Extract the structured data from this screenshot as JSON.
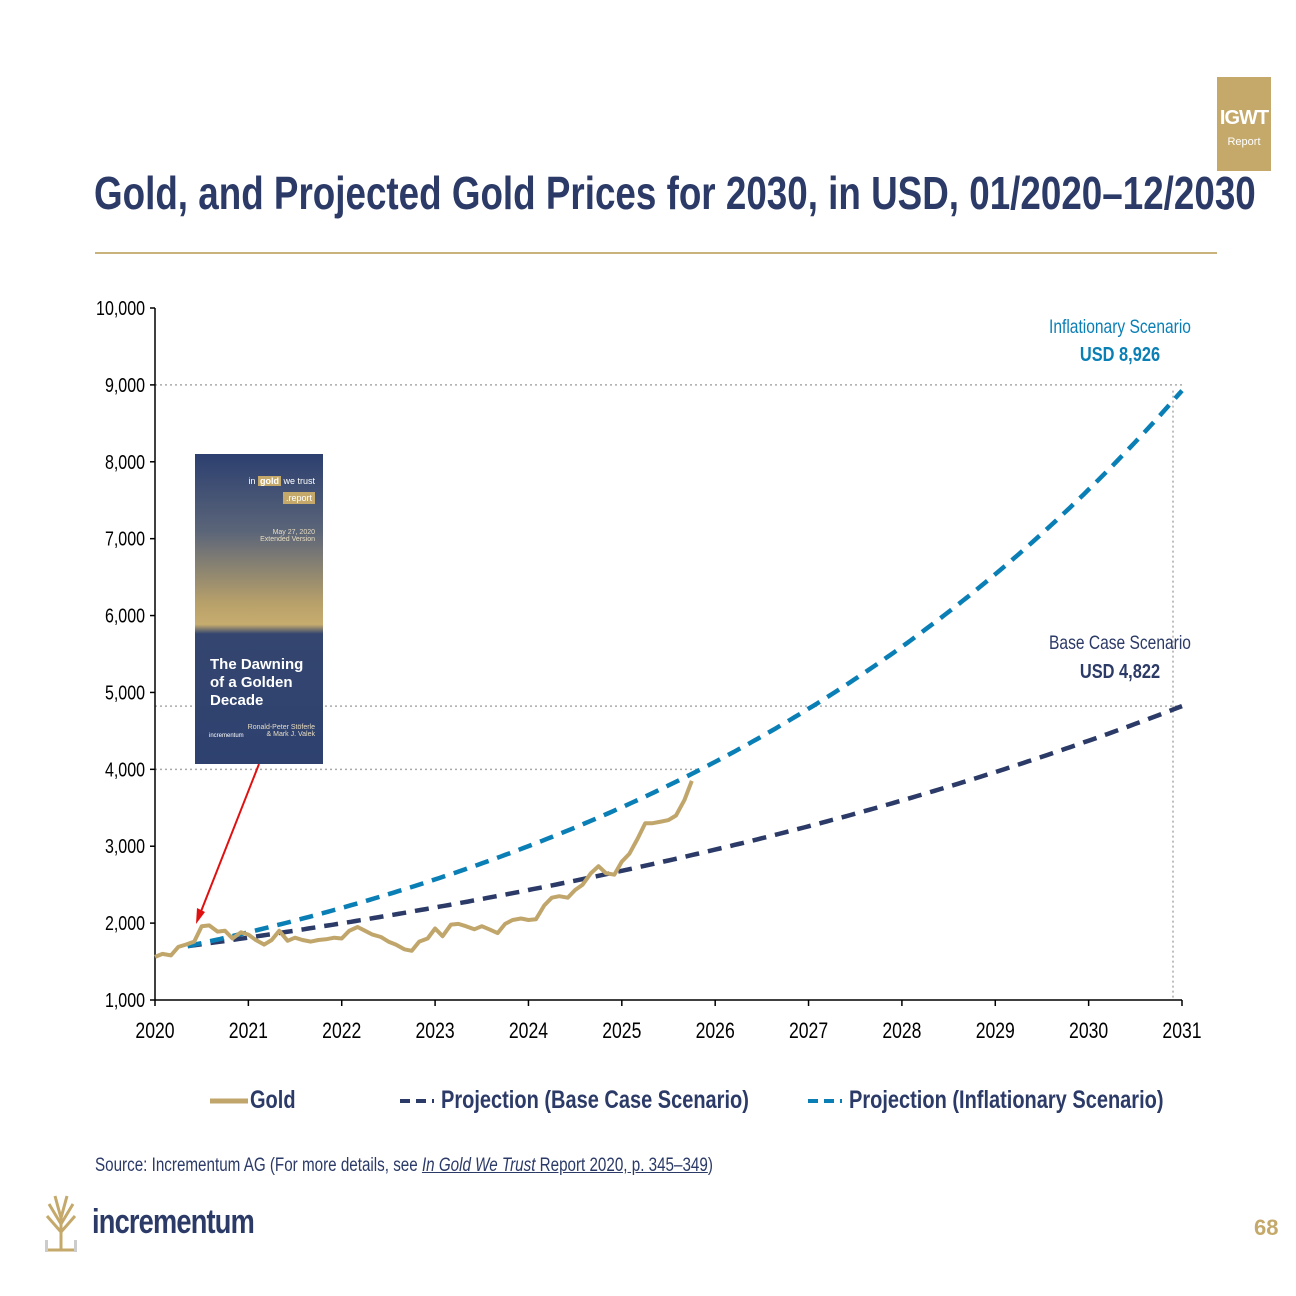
{
  "header": {
    "title": "Gold, and Projected Gold Prices for 2030, in USD, 01/2020–12/2030",
    "badge_line1": "IGWT",
    "badge_line2": "Report"
  },
  "cover": {
    "tag_pre": "in",
    "tag_gold": "gold",
    "tag_post": "we trust",
    "tag_report": ".report",
    "date": "May 27, 2020",
    "edition": "Extended Version",
    "title_l1": "The Dawning",
    "title_l2": "of a Golden",
    "title_l3": "Decade",
    "authors_l1": "Ronald-Peter Stöferle",
    "authors_l2": "& Mark J. Valek",
    "publisher": "incrementum"
  },
  "chart_data": {
    "type": "line",
    "title": "Gold, and Projected Gold Prices for 2030, in USD, 01/2020–12/2030",
    "xlim": [
      2020,
      2031
    ],
    "ylim": [
      1000,
      10000
    ],
    "x_ticks": [
      "2020",
      "2021",
      "2022",
      "2023",
      "2024",
      "2025",
      "2026",
      "2027",
      "2028",
      "2029",
      "2030",
      "2031"
    ],
    "y_ticks": [
      "1,000",
      "2,000",
      "3,000",
      "4,000",
      "5,000",
      "6,000",
      "7,000",
      "8,000",
      "9,000",
      "10,000"
    ],
    "reference_lines": [
      9000,
      4822,
      4000
    ],
    "legend_position": "bottom",
    "annotations": {
      "inflationary_label": "Inflationary Scenario",
      "inflationary_value": "USD 8,926",
      "base_label": "Base Case Scenario",
      "base_value": "USD 4,822"
    },
    "series": [
      {
        "name": "Gold",
        "color": "#c1a66c",
        "style": "solid",
        "x": [
          2020.0,
          2020.08,
          2020.17,
          2020.25,
          2020.33,
          2020.42,
          2020.5,
          2020.58,
          2020.67,
          2020.75,
          2020.83,
          2020.92,
          2021.0,
          2021.08,
          2021.17,
          2021.25,
          2021.33,
          2021.42,
          2021.5,
          2021.58,
          2021.67,
          2021.75,
          2021.83,
          2021.92,
          2022.0,
          2022.08,
          2022.17,
          2022.25,
          2022.33,
          2022.42,
          2022.5,
          2022.58,
          2022.67,
          2022.75,
          2022.83,
          2022.92,
          2023.0,
          2023.08,
          2023.17,
          2023.25,
          2023.33,
          2023.42,
          2023.5,
          2023.58,
          2023.67,
          2023.75,
          2023.83,
          2023.92,
          2024.0,
          2024.08,
          2024.17,
          2024.25,
          2024.33,
          2024.42,
          2024.5,
          2024.58,
          2024.67,
          2024.75,
          2024.83,
          2024.92,
          2025.0,
          2025.08,
          2025.17,
          2025.25,
          2025.33,
          2025.42,
          2025.5,
          2025.58,
          2025.67,
          2025.75
        ],
        "values": [
          1560,
          1600,
          1580,
          1690,
          1720,
          1760,
          1960,
          1970,
          1890,
          1900,
          1800,
          1880,
          1850,
          1780,
          1720,
          1780,
          1900,
          1770,
          1810,
          1780,
          1760,
          1780,
          1790,
          1810,
          1800,
          1900,
          1950,
          1900,
          1850,
          1820,
          1760,
          1720,
          1660,
          1640,
          1760,
          1800,
          1930,
          1830,
          1980,
          1990,
          1960,
          1920,
          1960,
          1920,
          1870,
          1990,
          2040,
          2060,
          2040,
          2050,
          2230,
          2330,
          2350,
          2330,
          2430,
          2500,
          2650,
          2740,
          2650,
          2630,
          2800,
          2900,
          3100,
          3300,
          3300,
          3320,
          3340,
          3400,
          3600,
          3850
        ]
      },
      {
        "name": "Projection (Base Case Scenario)",
        "color": "#2b3a67",
        "style": "dashed",
        "start_x": 2020.35,
        "start_value": 1700,
        "end_x": 2031,
        "end_value": 4822
      },
      {
        "name": "Projection (Inflationary Scenario)",
        "color": "#0a7fb5",
        "style": "dashed",
        "start_x": 2020.35,
        "start_value": 1700,
        "end_x": 2031,
        "end_value": 8926
      }
    ]
  },
  "legend": {
    "gold": "Gold",
    "base": "Projection (Base Case Scenario)",
    "infl": "Projection (Inflationary Scenario)"
  },
  "footer": {
    "source_pre": "Source: Incrementum AG (For more details, see ",
    "source_link_italic": "In Gold We Trust",
    "source_link_rest": " Report 2020, p. 345–349",
    "source_post": ")",
    "logo": "incrementum",
    "page": "68"
  }
}
